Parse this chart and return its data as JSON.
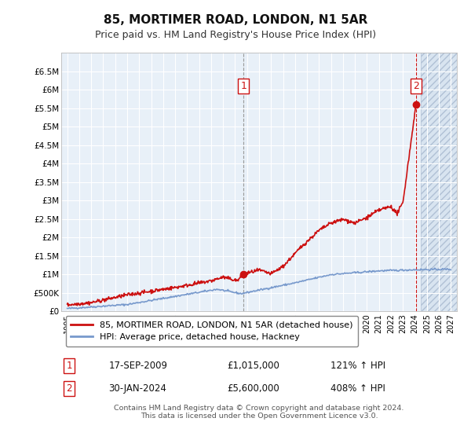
{
  "title": "85, MORTIMER ROAD, LONDON, N1 5AR",
  "subtitle": "Price paid vs. HM Land Registry's House Price Index (HPI)",
  "legend_line1": "85, MORTIMER ROAD, LONDON, N1 5AR (detached house)",
  "legend_line2": "HPI: Average price, detached house, Hackney",
  "annotation1_year": 2009.71,
  "annotation1_value": 1015000,
  "annotation2_year": 2024.08,
  "annotation2_value": 5600000,
  "footer": "Contains HM Land Registry data © Crown copyright and database right 2024.\nThis data is licensed under the Open Government Licence v3.0.",
  "xlim": [
    1994.5,
    2027.5
  ],
  "ylim": [
    0,
    7000000
  ],
  "yticks": [
    0,
    500000,
    1000000,
    1500000,
    2000000,
    2500000,
    3000000,
    3500000,
    4000000,
    4500000,
    5000000,
    5500000,
    6000000,
    6500000
  ],
  "ytick_labels": [
    "£0",
    "£500K",
    "£1M",
    "£1.5M",
    "£2M",
    "£2.5M",
    "£3M",
    "£3.5M",
    "£4M",
    "£4.5M",
    "£5M",
    "£5.5M",
    "£6M",
    "£6.5M"
  ],
  "hpi_color": "#7799cc",
  "price_color": "#cc1111",
  "bg_color": "#e8f0f8",
  "grid_color": "#ffffff",
  "annotation_box_color": "#cc1111",
  "xticks": [
    1995,
    1996,
    1997,
    1998,
    1999,
    2000,
    2001,
    2002,
    2003,
    2004,
    2005,
    2006,
    2007,
    2008,
    2009,
    2010,
    2011,
    2012,
    2013,
    2014,
    2015,
    2016,
    2017,
    2018,
    2019,
    2020,
    2021,
    2022,
    2023,
    2024,
    2025,
    2026,
    2027
  ],
  "hatch_start": 2024.5,
  "table_rows": [
    [
      "1",
      "17-SEP-2009",
      "£1,015,000",
      "121% ↑ HPI"
    ],
    [
      "2",
      "30-JAN-2024",
      "£5,600,000",
      "408% ↑ HPI"
    ]
  ]
}
